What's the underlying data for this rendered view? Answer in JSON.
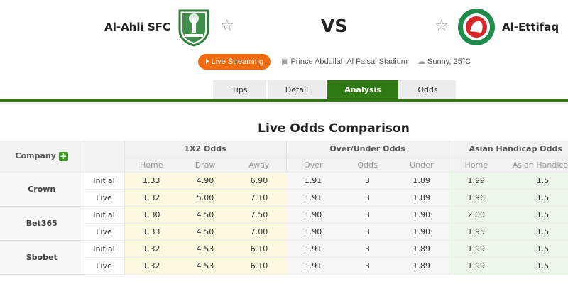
{
  "match": {
    "home_team": "Al-Ahli SFC",
    "away_team": "Al-Ettifaq",
    "vs": "VS",
    "live_button": "Live Streaming",
    "stadium": "Prince Abdullah Al Faisal Stadium",
    "weather": "Sunny, 25°C"
  },
  "tabs": [
    {
      "label": "Tips"
    },
    {
      "label": "Detail"
    },
    {
      "label": "Analysis",
      "active": true
    },
    {
      "label": "Odds"
    }
  ],
  "section_title": "Live Odds Comparison",
  "table": {
    "company_header": "Company",
    "groups": [
      "1X2 Odds",
      "Over/Under Odds",
      "Asian Handicap Odds"
    ],
    "subheaders": [
      "Home",
      "Draw",
      "Away",
      "Over",
      "Odds",
      "Under",
      "Home",
      "Asian Handicap"
    ],
    "companies": [
      {
        "name": "Crown",
        "rows": [
          {
            "type": "Initial",
            "values": [
              "1.33",
              "4.90",
              "6.90",
              "1.91",
              "3",
              "1.89",
              "1.99",
              "1.5"
            ]
          },
          {
            "type": "Live",
            "values": [
              "1.32",
              "5.00",
              "7.10",
              "1.91",
              "3",
              "1.89",
              "1.96",
              "1.5"
            ]
          }
        ]
      },
      {
        "name": "Bet365",
        "rows": [
          {
            "type": "Initial",
            "values": [
              "1.30",
              "4.50",
              "7.50",
              "1.90",
              "3",
              "1.90",
              "2.00",
              "1.5"
            ]
          },
          {
            "type": "Live",
            "values": [
              "1.33",
              "4.50",
              "7.00",
              "1.90",
              "3",
              "1.90",
              "1.95",
              "1.5"
            ]
          }
        ]
      },
      {
        "name": "Sbobet",
        "rows": [
          {
            "type": "Initial",
            "values": [
              "1.32",
              "4.53",
              "6.10",
              "1.91",
              "3",
              "1.89",
              "1.99",
              "1.5"
            ]
          },
          {
            "type": "Live",
            "values": [
              "1.32",
              "4.53",
              "6.10",
              "1.91",
              "3",
              "1.89",
              "1.99",
              "1.5"
            ]
          }
        ]
      }
    ]
  },
  "colors": {
    "brand_green": "#2d7a12",
    "live_orange": "#f26b0f",
    "x12_bg": "#fdf9e1",
    "ah_bg": "#edf7e9"
  }
}
